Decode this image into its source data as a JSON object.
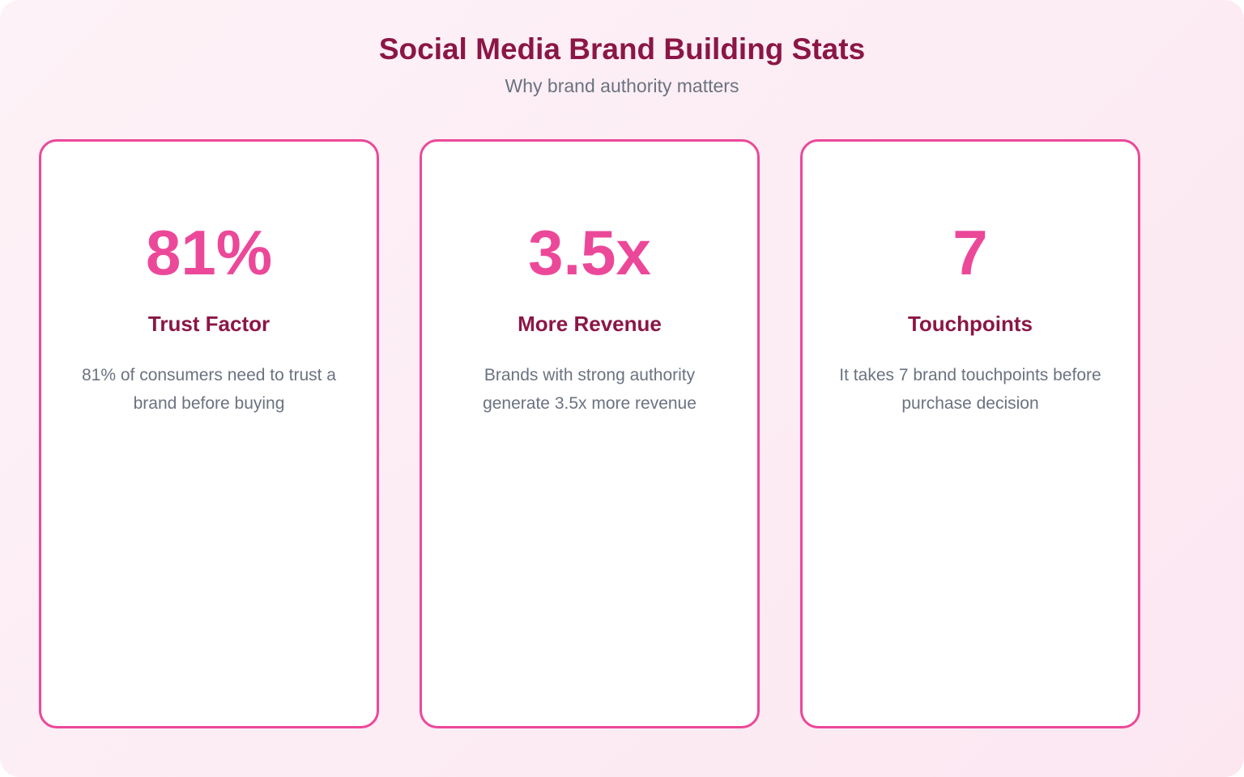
{
  "header": {
    "title": "Social Media Brand Building Stats",
    "subtitle": "Why brand authority matters"
  },
  "cards": [
    {
      "stat": "81%",
      "label": "Trust Factor",
      "description": "81% of consumers need to trust a brand before buying"
    },
    {
      "stat": "3.5x",
      "label": "More Revenue",
      "description": "Brands with strong authority generate 3.5x more revenue"
    },
    {
      "stat": "7",
      "label": "Touchpoints",
      "description": "It takes 7 brand touchpoints before purchase decision"
    }
  ]
}
